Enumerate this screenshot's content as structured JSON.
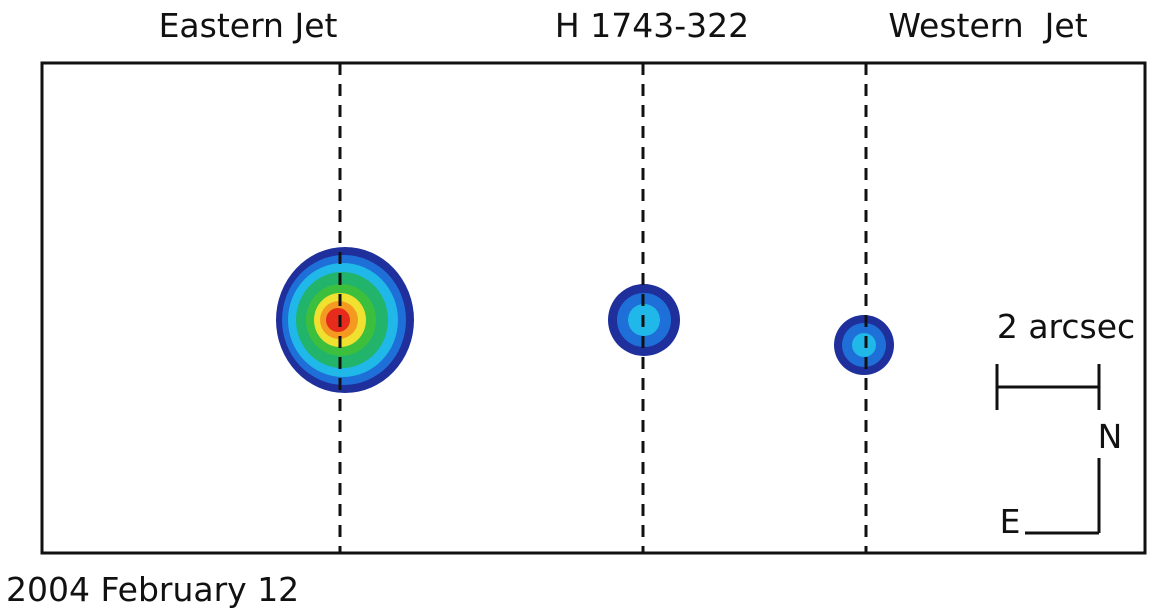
{
  "labels": {
    "eastern": "Eastern Jet",
    "source": "H 1743-322",
    "western": "Western  Jet"
  },
  "scale_bar": "2 arcsec",
  "compass": {
    "north": "N",
    "east": "E"
  },
  "date": "2004 February 12"
}
